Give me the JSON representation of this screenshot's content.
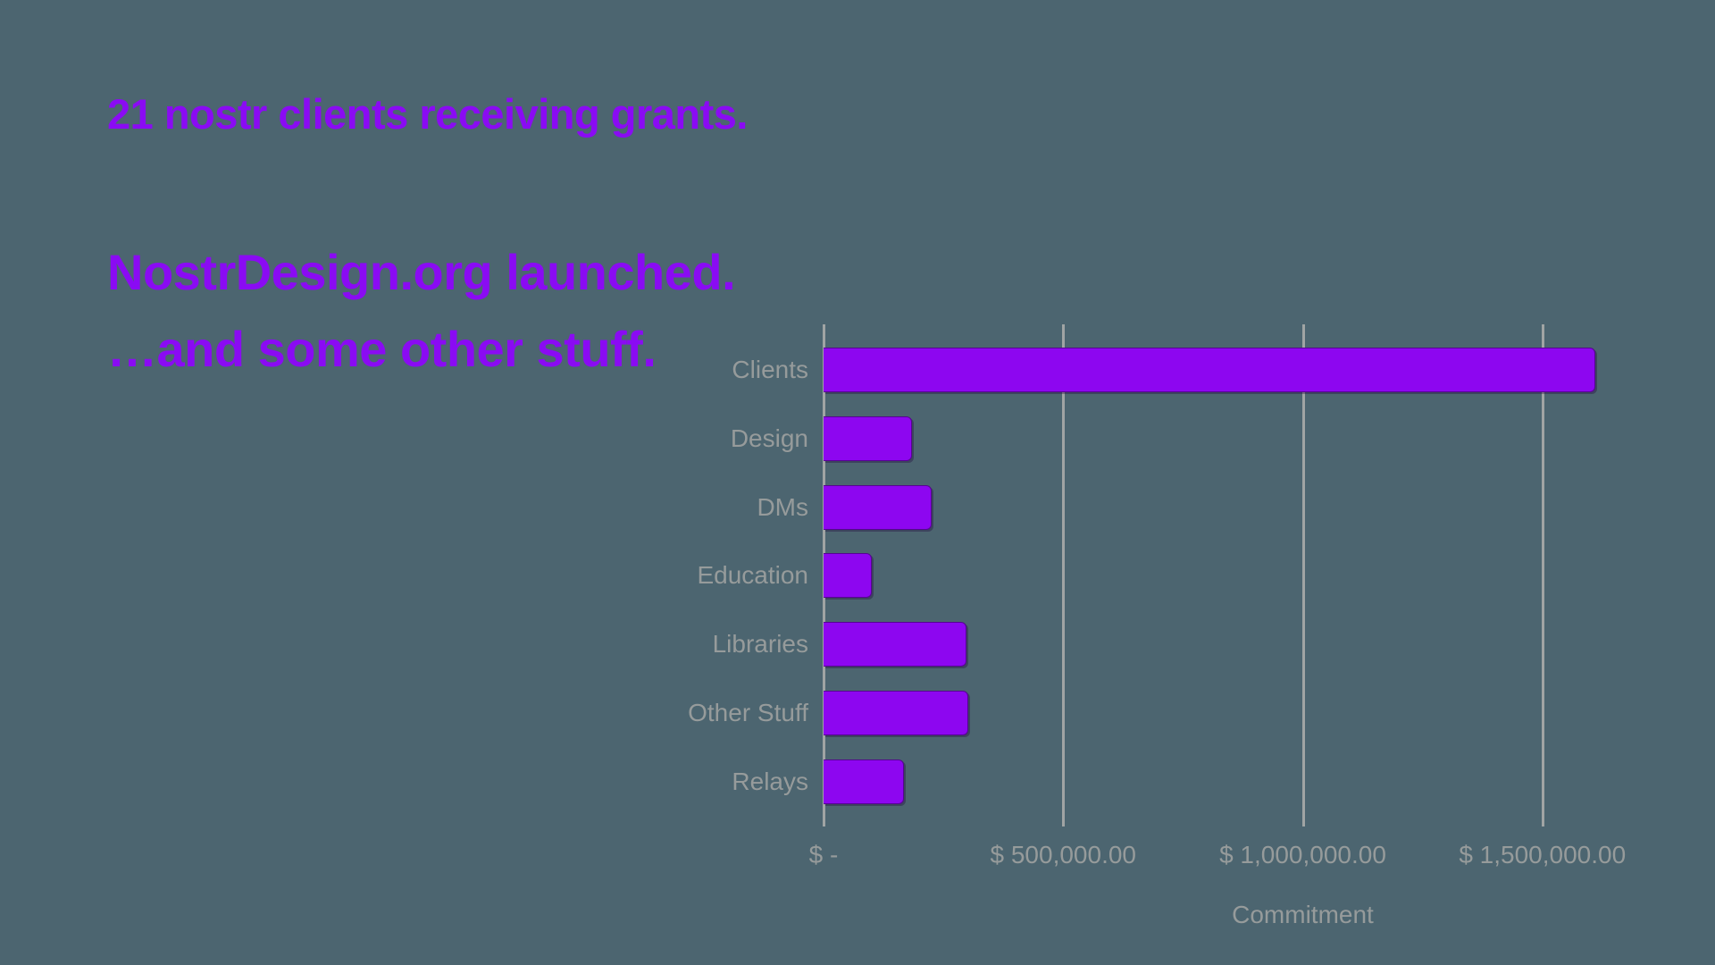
{
  "page": {
    "background_color": "#4C6570",
    "accent_purple": "#8A0BF3",
    "bar_purple": "#8D06F0",
    "muted_gray": "#969B9B",
    "gridline_gray": "#A0A4A4"
  },
  "headings": {
    "line1": "21 nostr clients receiving grants.",
    "line2": "NostrDesign.org launched.",
    "line3": "…and some other stuff."
  },
  "chart_data": {
    "type": "bar",
    "orientation": "horizontal",
    "title": "",
    "xlabel": "Commitment",
    "ylabel": "",
    "categories": [
      "Clients",
      "Design",
      "DMs",
      "Education",
      "Libraries",
      "Other Stuff",
      "Relays"
    ],
    "values": [
      1610000,
      185000,
      225000,
      100000,
      297500,
      302500,
      168000
    ],
    "xlim": [
      0,
      2000000
    ],
    "x_ticks": [
      0,
      500000,
      1000000,
      1500000
    ],
    "x_tick_labels": [
      "$ -",
      "$ 500,000.00",
      "$ 1,000,000.00",
      "$ 1,500,000.00"
    ],
    "grid": "vertical-gridlines-on",
    "legend": "none"
  }
}
